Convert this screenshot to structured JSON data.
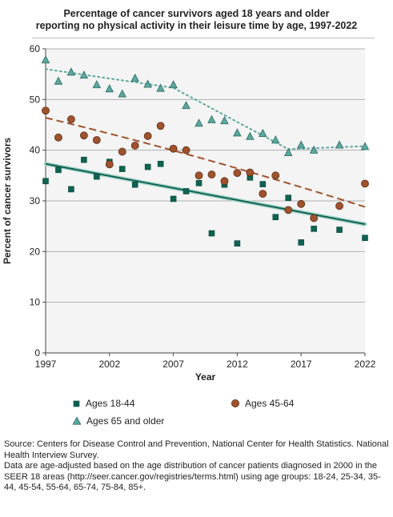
{
  "title_line1": "Percentage of cancer survivors aged 18 years and older",
  "title_line2": "reporting no physical activity in their leisure time by age, 1997-2022",
  "source_line1": "Source: Centers for Disease Control and Prevention, National Center for Health Statistics. National Health Interview Survey.",
  "source_line2": "Data are age-adjusted based on the age distribution of cancer patients diagnosed in 2000 in the SEER 18 areas (http://seer.cancer.gov/registries/terms.html) using age groups: 18-24, 25-34, 35-44, 45-54, 55-64, 65-74, 75-84, 85+.",
  "chart_data": {
    "type": "scatter",
    "xlabel": "Year",
    "ylabel": "Percent of cancer survivors",
    "xlim": [
      1997,
      2022
    ],
    "ylim": [
      0,
      60
    ],
    "x_ticks": [
      1997,
      2002,
      2007,
      2012,
      2017,
      2022
    ],
    "y_ticks": [
      0,
      10,
      20,
      30,
      40,
      50,
      60
    ],
    "grid": "horizontal",
    "legend_placement": "bottom",
    "series": [
      {
        "name": "Ages 18-44",
        "marker": "square",
        "color": "#0e6251",
        "trend_style": "solid",
        "x": [
          1997,
          1998,
          1999,
          2000,
          2001,
          2002,
          2003,
          2004,
          2005,
          2006,
          2007,
          2008,
          2009,
          2010,
          2011,
          2012,
          2013,
          2014,
          2015,
          2016,
          2017,
          2018,
          2020,
          2022
        ],
        "y": [
          33.9,
          36.1,
          32.3,
          38.1,
          34.8,
          37.7,
          36.3,
          33.2,
          36.7,
          37.3,
          30.4,
          31.9,
          33.5,
          23.6,
          33.2,
          21.6,
          34.6,
          33.3,
          26.8,
          30.6,
          21.8,
          24.5,
          24.3,
          22.7
        ],
        "trend": [
          37.3,
          25.4
        ]
      },
      {
        "name": "Ages 45-64",
        "marker": "circle",
        "color": "#a0522d",
        "trend_style": "dashed",
        "x": [
          1997,
          1998,
          1999,
          2000,
          2001,
          2002,
          2003,
          2004,
          2005,
          2006,
          2007,
          2008,
          2009,
          2010,
          2011,
          2012,
          2013,
          2014,
          2015,
          2016,
          2017,
          2018,
          2020,
          2022
        ],
        "y": [
          47.8,
          42.5,
          46.1,
          42.9,
          42.0,
          37.2,
          39.7,
          40.9,
          42.8,
          44.8,
          40.3,
          40.0,
          35.0,
          35.2,
          33.9,
          35.5,
          35.6,
          31.4,
          35.0,
          28.2,
          29.4,
          26.6,
          29.0,
          33.4
        ],
        "trend": [
          46.4,
          28.8
        ]
      },
      {
        "name": "Ages 65 and older",
        "marker": "triangle",
        "color": "#5ba8a0",
        "trend_style": "dotted",
        "x": [
          1997,
          1998,
          1999,
          2000,
          2001,
          2002,
          2003,
          2004,
          2005,
          2006,
          2007,
          2008,
          2009,
          2010,
          2011,
          2012,
          2013,
          2014,
          2015,
          2016,
          2017,
          2018,
          2020,
          2022
        ],
        "y": [
          57.8,
          53.6,
          55.4,
          54.8,
          52.9,
          52.1,
          51.1,
          54.2,
          53.0,
          52.2,
          52.9,
          48.8,
          45.3,
          46.0,
          45.8,
          43.4,
          42.7,
          43.3,
          42.0,
          39.5,
          41.0,
          40.0,
          41.0,
          40.7
        ],
        "trend": [
          [
            1997,
            56.0
          ],
          [
            2007,
            52.3
          ],
          [
            2016,
            40.2
          ],
          [
            2022,
            40.8
          ]
        ]
      }
    ]
  }
}
